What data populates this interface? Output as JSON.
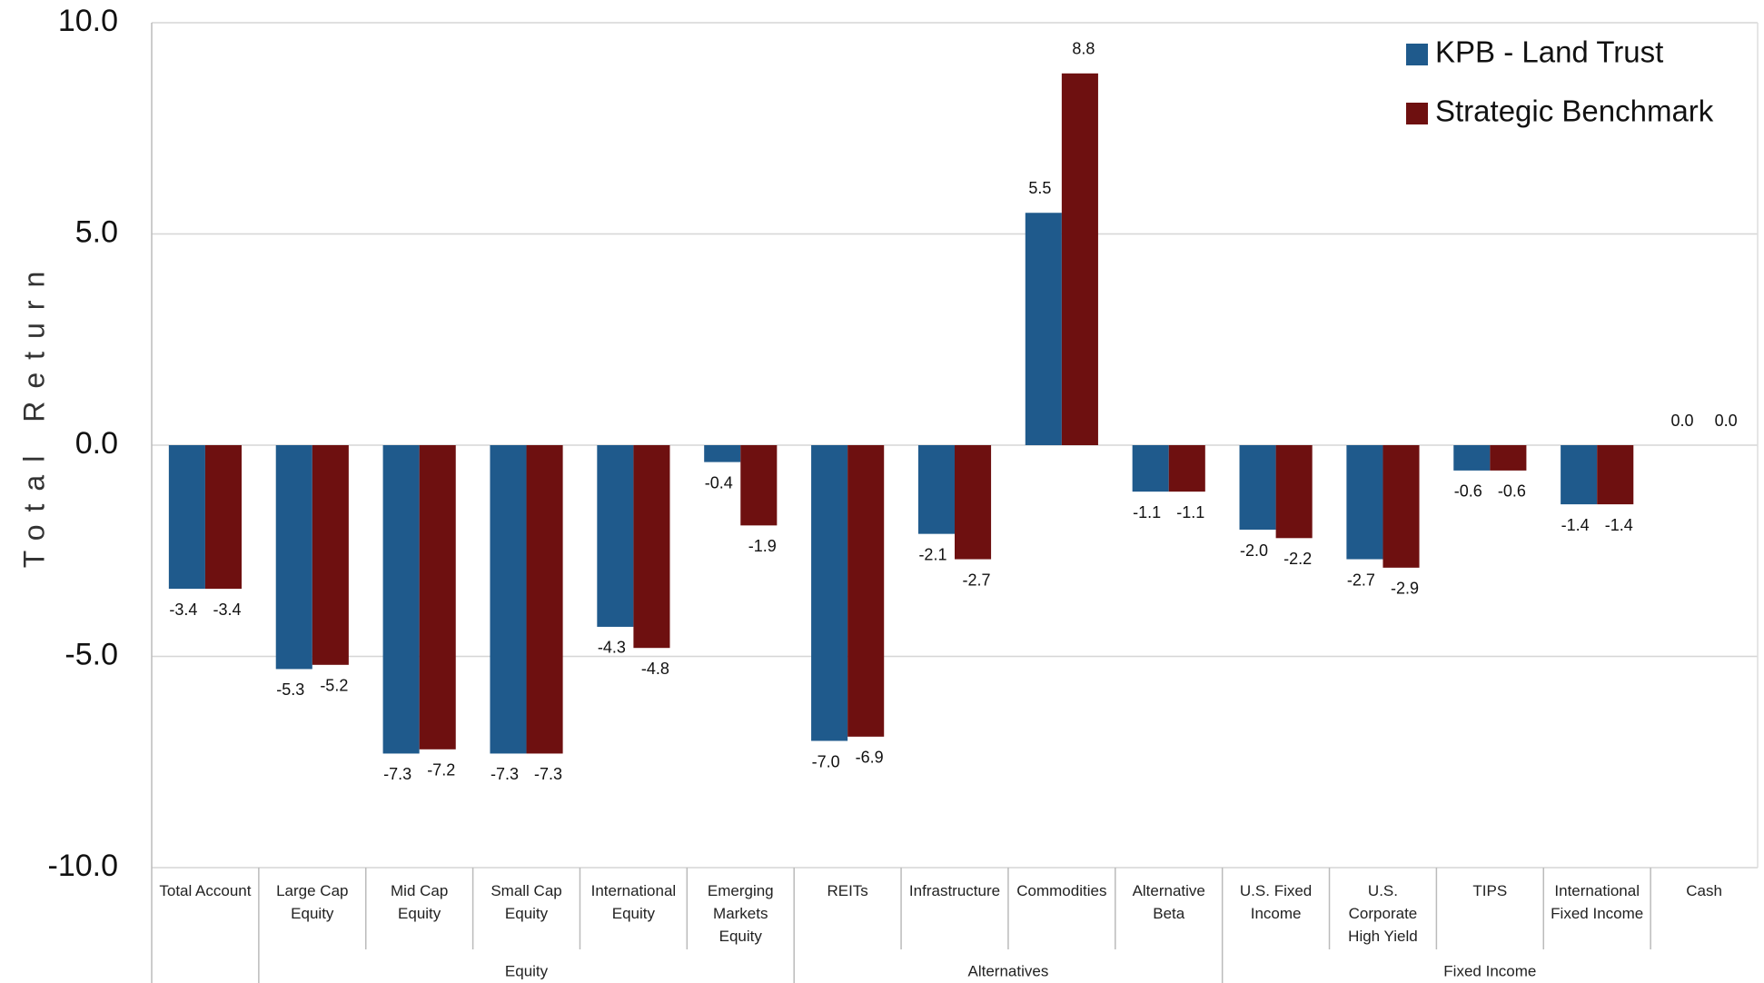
{
  "chart_data": {
    "type": "bar",
    "y_label": "Total Return",
    "categories": [
      "Total Account",
      "Large Cap\nEquity",
      "Mid Cap\nEquity",
      "Small Cap\nEquity",
      "International\nEquity",
      "Emerging\nMarkets\nEquity",
      "REITs",
      "Infrastructure",
      "Commodities",
      "Alternative\nBeta",
      "U.S. Fixed\nIncome",
      "U.S.\nCorporate\nHigh Yield",
      "TIPS",
      "International\nFixed Income",
      "Cash"
    ],
    "groups": [
      {
        "label": "Equity",
        "categories": [
          1,
          2,
          3,
          4,
          5
        ]
      },
      {
        "label": "Alternatives",
        "categories": [
          6,
          7,
          8,
          9
        ]
      },
      {
        "label": "Fixed Income",
        "categories": [
          10,
          11,
          12,
          13,
          14
        ]
      }
    ],
    "series": [
      {
        "name": "KPB - Land Trust",
        "color": "#1f5a8c",
        "values": [
          -3.4,
          -5.3,
          -7.3,
          -7.3,
          -4.3,
          -0.4,
          -7.0,
          -2.1,
          5.5,
          -1.1,
          -2.0,
          -2.7,
          -0.6,
          -1.4,
          0.0
        ],
        "value_labels": [
          "-3.4",
          "-5.3",
          "-7.3",
          "-7.3",
          "-4.3",
          "-0.4",
          "-7.0",
          "-2.1",
          "5.5",
          "-1.1",
          "-2.0",
          "-2.7",
          "-0.6",
          "-1.4",
          "0.0"
        ]
      },
      {
        "name": "Strategic Benchmark",
        "color": "#6e1010",
        "values": [
          -3.4,
          -5.2,
          -7.2,
          -7.3,
          -4.8,
          -1.9,
          -6.9,
          -2.7,
          8.8,
          -1.1,
          -2.2,
          -2.9,
          -0.6,
          -1.4,
          0.0
        ],
        "value_labels": [
          "-3.4",
          "-5.2",
          "-7.2",
          "-7.3",
          "-4.8",
          "-1.9",
          "-6.9",
          "-2.7",
          "8.8",
          "-1.1",
          "-2.2",
          "-2.9",
          "-0.6",
          "-1.4",
          "0.0"
        ]
      }
    ],
    "ylim": [
      -10,
      10
    ],
    "yticks": [
      {
        "value": -10,
        "label": "-10.0"
      },
      {
        "value": -5,
        "label": "-5.0"
      },
      {
        "value": 0,
        "label": "0.0"
      },
      {
        "value": 5,
        "label": "5.0"
      },
      {
        "value": 10,
        "label": "10.0"
      }
    ],
    "grid": true,
    "legend": "top-right"
  }
}
